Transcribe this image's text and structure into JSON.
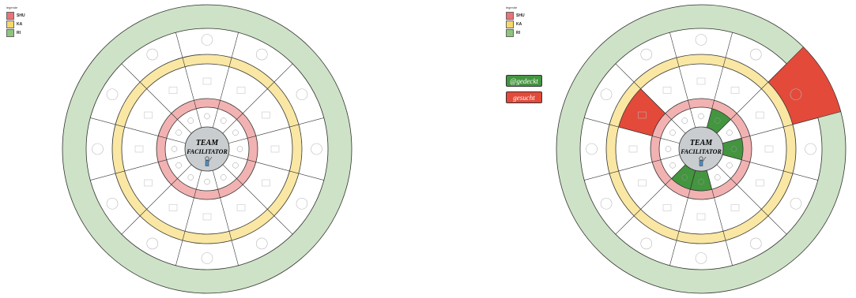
{
  "legend": {
    "title": "legende",
    "items": [
      {
        "label": "SHU",
        "color": "#e8737a"
      },
      {
        "label": "KA",
        "color": "#f7d76a"
      },
      {
        "label": "RI",
        "color": "#8ec47c"
      }
    ]
  },
  "tags": {
    "green": {
      "label": "@gedeckt",
      "color": "#43953f"
    },
    "red": {
      "label": "gesucht",
      "color": "#e34a3a"
    }
  },
  "wheel": {
    "center_line1": "TEAM",
    "center_line2": "FACILITATOR",
    "colors": {
      "outer_ring": "#cde2c6",
      "middle_ring": "#f9e7a3",
      "inner_ring": "#f2b2b2",
      "hub": "#c9cdd0",
      "highlight_green": "#43953f",
      "highlight_red": "#e34a3a"
    }
  },
  "right_highlights": {
    "green_inner_sectors": [
      1,
      3,
      6,
      7
    ],
    "red_outer_sectors": [
      2
    ],
    "red_middle_sectors": [
      10
    ]
  }
}
